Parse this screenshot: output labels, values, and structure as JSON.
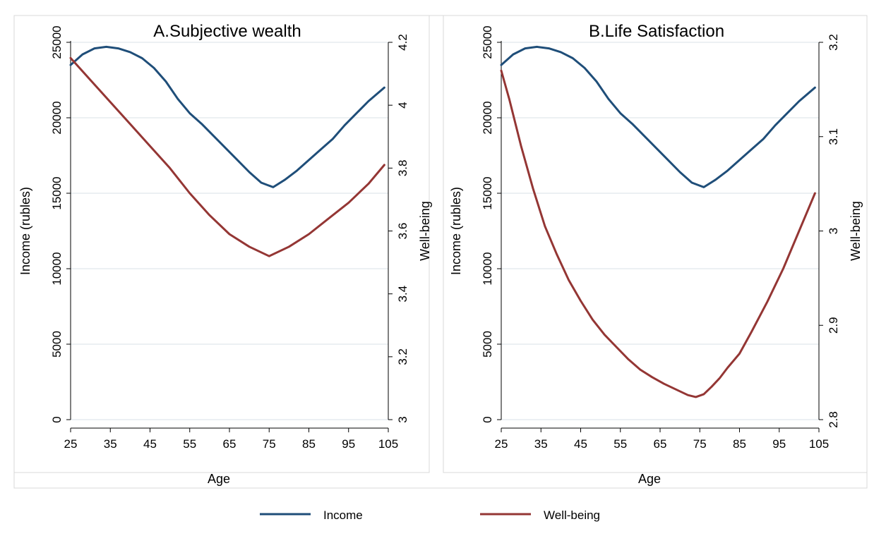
{
  "chart_data": [
    {
      "type": "line",
      "title": "A.Subjective wealth",
      "xlabel": "Age",
      "ylabel": "Income (rubles)",
      "y2label": "Well-being",
      "xlim": [
        25,
        105
      ],
      "ylim": [
        0,
        25000
      ],
      "y2lim": [
        3,
        4.2
      ],
      "xticks": [
        "25",
        "35",
        "45",
        "55",
        "65",
        "75",
        "85",
        "95",
        "105"
      ],
      "yticks": [
        "0",
        "5000",
        "10000",
        "15000",
        "20000",
        "25000"
      ],
      "y2ticks": [
        "3",
        "3.2",
        "3.4",
        "3.6",
        "3.8",
        "4",
        "4.2"
      ],
      "grid": true,
      "series": [
        {
          "name": "Income",
          "axis": "left",
          "color": "#1f4e79",
          "x": [
            25,
            28,
            31,
            34,
            37,
            40,
            43,
            46,
            49,
            52,
            55,
            58,
            61,
            64,
            67,
            70,
            73,
            76,
            79,
            82,
            85,
            88,
            91,
            94,
            97,
            100,
            104
          ],
          "y": [
            23500,
            24200,
            24600,
            24700,
            24600,
            24350,
            23950,
            23300,
            22400,
            21250,
            20300,
            19600,
            18800,
            18000,
            17200,
            16400,
            15700,
            15400,
            15900,
            16500,
            17200,
            17900,
            18600,
            19500,
            20300,
            21100,
            22000
          ]
        },
        {
          "name": "Well-being",
          "axis": "right",
          "color": "#943634",
          "x": [
            25,
            30,
            35,
            40,
            45,
            50,
            55,
            60,
            65,
            70,
            75,
            80,
            85,
            90,
            95,
            100,
            104
          ],
          "y": [
            4.15,
            4.08,
            4.01,
            3.94,
            3.87,
            3.8,
            3.72,
            3.65,
            3.59,
            3.55,
            3.52,
            3.55,
            3.59,
            3.64,
            3.69,
            3.75,
            3.81
          ]
        }
      ]
    },
    {
      "type": "line",
      "title": "B.Life Satisfaction",
      "xlabel": "Age",
      "ylabel": "Income (rubles)",
      "y2label": "Well-being",
      "xlim": [
        25,
        105
      ],
      "ylim": [
        0,
        25000
      ],
      "y2lim": [
        2.8,
        3.2
      ],
      "xticks": [
        "25",
        "35",
        "45",
        "55",
        "65",
        "75",
        "85",
        "95",
        "105"
      ],
      "yticks": [
        "0",
        "5000",
        "10000",
        "15000",
        "20000",
        "25000"
      ],
      "y2ticks": [
        "2.8",
        "2.9",
        "3",
        "3.1",
        "3.2"
      ],
      "grid": true,
      "series": [
        {
          "name": "Income",
          "axis": "left",
          "color": "#1f4e79",
          "x": [
            25,
            28,
            31,
            34,
            37,
            40,
            43,
            46,
            49,
            52,
            55,
            58,
            61,
            64,
            67,
            70,
            73,
            76,
            79,
            82,
            85,
            88,
            91,
            94,
            97,
            100,
            104
          ],
          "y": [
            23500,
            24200,
            24600,
            24700,
            24600,
            24350,
            23950,
            23300,
            22400,
            21250,
            20300,
            19600,
            18800,
            18000,
            17200,
            16400,
            15700,
            15400,
            15900,
            16500,
            17200,
            17900,
            18600,
            19500,
            20300,
            21100,
            22000
          ]
        },
        {
          "name": "Well-being",
          "axis": "right",
          "color": "#943634",
          "x": [
            25,
            27,
            30,
            33,
            36,
            39,
            42,
            45,
            48,
            51,
            54,
            57,
            60,
            63,
            66,
            69,
            72,
            74,
            76,
            78,
            80,
            82,
            85,
            88,
            92,
            96,
            100,
            104
          ],
          "y": [
            3.17,
            3.14,
            3.09,
            3.045,
            3.005,
            2.975,
            2.948,
            2.926,
            2.906,
            2.89,
            2.877,
            2.864,
            2.853,
            2.845,
            2.838,
            2.832,
            2.826,
            2.824,
            2.827,
            2.835,
            2.844,
            2.855,
            2.87,
            2.893,
            2.925,
            2.96,
            3.0,
            3.04
          ]
        }
      ]
    }
  ],
  "legend": {
    "position": "bottom",
    "items": [
      {
        "label": "Income",
        "color": "#1f4e79"
      },
      {
        "label": "Well-being",
        "color": "#943634"
      }
    ]
  }
}
